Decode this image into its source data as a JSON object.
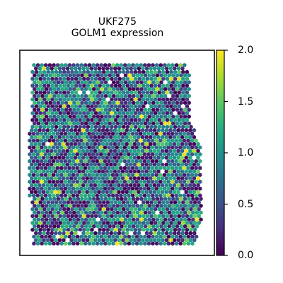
{
  "chart_data": {
    "type": "scatter",
    "subtype": "spatial hexagonal spot plot",
    "title": "UKF275",
    "subtitle": "GOLM1 expression",
    "xlabel": "",
    "ylabel": "",
    "grid": false,
    "axes_ticks": false,
    "colormap": "viridis",
    "colorbar": {
      "range": [
        0.0,
        2.0
      ],
      "ticks": [
        0.0,
        0.5,
        1.0,
        1.5,
        2.0
      ],
      "tick_labels": [
        "0.0",
        "0.5",
        "1.0",
        "1.5",
        "2.0"
      ]
    },
    "colors": {
      "low": "#440154",
      "mid_low": "#3b528b",
      "mid": "#21918c",
      "mid_high": "#5ec962",
      "high": "#fde725"
    },
    "value_distribution": {
      "description": "mostly 0 to 1.2, many teal spots near 1.0, few bright spots near 2.0",
      "approx_mean": 0.8
    }
  }
}
